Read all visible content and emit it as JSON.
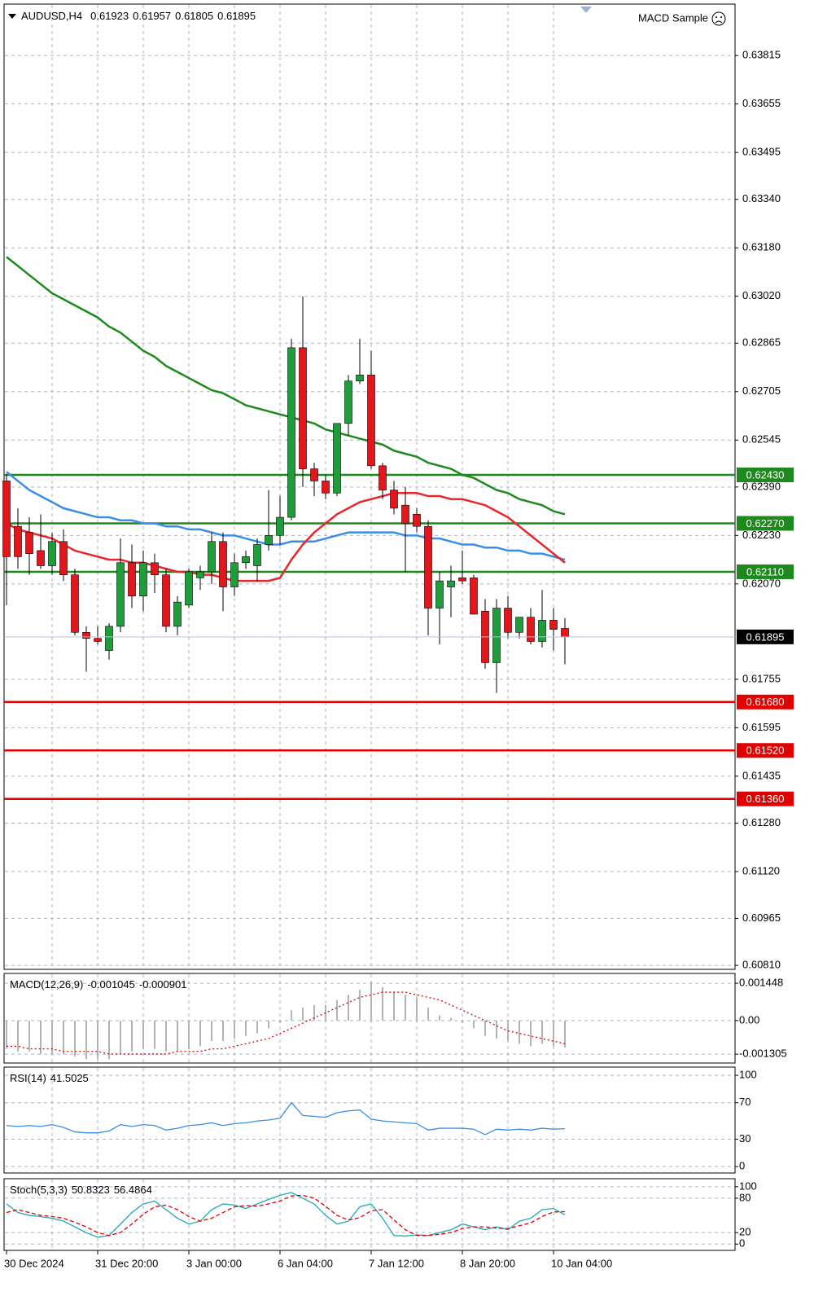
{
  "chart_data": [
    {
      "type": "candlestick",
      "title": "AUDUSD,H4",
      "expert": "MACD Sample",
      "categories": [
        "30 Dec 2024",
        null,
        null,
        null,
        null,
        null,
        null,
        null,
        "31 Dec 20:00",
        null,
        null,
        null,
        null,
        null,
        null,
        null,
        "3 Jan 00:00",
        null,
        null,
        null,
        null,
        null,
        null,
        null,
        "6 Jan 04:00",
        null,
        null,
        null,
        null,
        null,
        null,
        null,
        "7 Jan 12:00",
        null,
        null,
        null,
        null,
        null,
        null,
        null,
        "8 Jan 20:00",
        null,
        null,
        null,
        null,
        null,
        null,
        null,
        "10 Jan 04:00",
        null
      ],
      "open": [
        0.6241,
        0.6226,
        0.6224,
        0.6218,
        0.6213,
        0.6221,
        0.621,
        0.6191,
        0.6189,
        0.6185,
        0.6193,
        0.6214,
        0.6203,
        0.6214,
        0.621,
        0.6193,
        0.62,
        0.6209,
        0.6211,
        0.6221,
        0.6206,
        0.6214,
        0.6213,
        0.622,
        0.6223,
        0.6229,
        0.6285,
        0.6245,
        0.6241,
        0.6237,
        0.626,
        0.6274,
        0.6276,
        0.6246,
        0.6238,
        0.6233,
        0.623,
        0.6226,
        0.6199,
        0.6206,
        0.6209,
        0.6209,
        0.6198,
        0.6181,
        0.6199,
        0.6191,
        0.6196,
        0.6188,
        0.6195,
        0.61923
      ],
      "high": [
        0.6243,
        0.6232,
        0.6229,
        0.623,
        0.6224,
        0.6225,
        0.6212,
        0.6193,
        0.6193,
        0.6194,
        0.6222,
        0.622,
        0.6218,
        0.6217,
        0.6212,
        0.6203,
        0.6212,
        0.6213,
        0.6224,
        0.6224,
        0.6217,
        0.6218,
        0.6222,
        0.6238,
        0.6236,
        0.6288,
        0.6302,
        0.6247,
        0.6243,
        0.626,
        0.6276,
        0.6288,
        0.6284,
        0.6247,
        0.6241,
        0.6239,
        0.6232,
        0.6228,
        0.6211,
        0.6213,
        0.6218,
        0.621,
        0.6202,
        0.6202,
        0.6203,
        0.6196,
        0.6199,
        0.6205,
        0.6199,
        0.61957
      ],
      "low": [
        0.62,
        0.6212,
        0.621,
        0.6212,
        0.621,
        0.6208,
        0.619,
        0.6178,
        0.6187,
        0.6182,
        0.6191,
        0.6199,
        0.6198,
        0.6204,
        0.6191,
        0.619,
        0.6199,
        0.6205,
        0.6207,
        0.6198,
        0.6203,
        0.6212,
        0.6208,
        0.6218,
        0.622,
        0.6228,
        0.6239,
        0.6236,
        0.6235,
        0.6236,
        0.6256,
        0.6273,
        0.6245,
        0.6235,
        0.623,
        0.6211,
        0.6224,
        0.619,
        0.6187,
        0.6196,
        0.6207,
        0.6197,
        0.6179,
        0.6171,
        0.6189,
        0.6189,
        0.6187,
        0.6186,
        0.6185,
        0.61805
      ],
      "close": [
        0.6216,
        0.6216,
        0.6217,
        0.6213,
        0.6221,
        0.621,
        0.6191,
        0.6189,
        0.6188,
        0.6193,
        0.6214,
        0.6203,
        0.6214,
        0.621,
        0.6193,
        0.6201,
        0.6211,
        0.6211,
        0.6221,
        0.6206,
        0.6214,
        0.6216,
        0.622,
        0.6223,
        0.6229,
        0.6285,
        0.6245,
        0.6241,
        0.6237,
        0.626,
        0.6274,
        0.6276,
        0.6246,
        0.6238,
        0.6232,
        0.6227,
        0.6226,
        0.6199,
        0.6208,
        0.6208,
        0.6208,
        0.6197,
        0.6181,
        0.6199,
        0.6191,
        0.6196,
        0.6188,
        0.6195,
        0.6192,
        0.61895
      ],
      "up_color": "#1f9d3a",
      "down_color": "#e3161c",
      "series": [
        {
          "color": "#1e8a1e",
          "values": [
            0.6315,
            0.6312,
            0.6309,
            0.6306,
            0.6303,
            0.6301,
            0.6299,
            0.6297,
            0.6295,
            0.6292,
            0.629,
            0.6287,
            0.6284,
            0.6282,
            0.6279,
            0.6277,
            0.6275,
            0.6273,
            0.6271,
            0.627,
            0.6268,
            0.6266,
            0.6265,
            0.6264,
            0.6263,
            0.6262,
            0.6261,
            0.626,
            0.6258,
            0.6257,
            0.6256,
            0.6255,
            0.6254,
            0.6253,
            0.6251,
            0.625,
            0.6249,
            0.6247,
            0.6246,
            0.6245,
            0.6243,
            0.6242,
            0.624,
            0.6238,
            0.6237,
            0.6235,
            0.6234,
            0.6233,
            0.6231,
            0.623
          ]
        },
        {
          "color": "#3a8ee6",
          "values": [
            0.6244,
            0.6241,
            0.6238,
            0.6236,
            0.6234,
            0.6232,
            0.6231,
            0.623,
            0.6229,
            0.6229,
            0.6228,
            0.6228,
            0.6227,
            0.6227,
            0.6226,
            0.6226,
            0.6225,
            0.6225,
            0.6224,
            0.6223,
            0.6223,
            0.6222,
            0.6221,
            0.622,
            0.622,
            0.6221,
            0.6221,
            0.6221,
            0.6222,
            0.6223,
            0.6224,
            0.6224,
            0.6224,
            0.6224,
            0.6224,
            0.6223,
            0.6223,
            0.6222,
            0.6222,
            0.6221,
            0.622,
            0.622,
            0.6219,
            0.6219,
            0.6218,
            0.6218,
            0.6217,
            0.6217,
            0.6216,
            0.6215
          ]
        },
        {
          "color": "#e8272a",
          "values": [
            0.6227,
            0.6225,
            0.6224,
            0.6223,
            0.6222,
            0.622,
            0.6218,
            0.6217,
            0.6216,
            0.6215,
            0.6215,
            0.6214,
            0.6214,
            0.6213,
            0.6212,
            0.6211,
            0.6211,
            0.621,
            0.621,
            0.6209,
            0.6208,
            0.6208,
            0.6208,
            0.6208,
            0.6209,
            0.6215,
            0.622,
            0.6224,
            0.6227,
            0.623,
            0.6232,
            0.6234,
            0.6235,
            0.6236,
            0.6237,
            0.6237,
            0.6237,
            0.6236,
            0.6236,
            0.6235,
            0.6235,
            0.6234,
            0.6233,
            0.6231,
            0.6229,
            0.6226,
            0.6223,
            0.622,
            0.6217,
            0.6214
          ]
        }
      ],
      "levels": [
        {
          "value": 0.6243,
          "label": "0.62430",
          "color": "#1e8a1e"
        },
        {
          "value": 0.6227,
          "label": "0.62270",
          "color": "#1e8a1e"
        },
        {
          "value": 0.6211,
          "label": "0.62110",
          "color": "#1e8a1e"
        },
        {
          "value": 0.6168,
          "label": "0.61680",
          "color": "#e00000"
        },
        {
          "value": 0.6152,
          "label": "0.61520",
          "color": "#e00000"
        },
        {
          "value": 0.6136,
          "label": "0.61360",
          "color": "#e00000"
        }
      ],
      "ylim": [
        0.60797,
        0.63985
      ],
      "yticks": [
        0.63815,
        0.63655,
        0.63495,
        {
          "value": 0.6334,
          "label": "0.63340"
        },
        {
          "value": 0.6318,
          "label": "0.63180"
        },
        {
          "value": 0.6302,
          "label": "0.63020"
        },
        0.62865,
        0.62705,
        0.62545,
        {
          "value": 0.6239,
          "label": "0.62390"
        },
        {
          "value": 0.6223,
          "label": "0.62230"
        },
        {
          "value": 0.6207,
          "label": "0.62070"
        },
        0.61755,
        0.61595,
        0.61435,
        {
          "value": 0.6128,
          "label": "0.61280"
        },
        {
          "value": 0.6112,
          "label": "0.61120"
        },
        0.60965,
        {
          "value": 0.6081,
          "label": "0.60810"
        }
      ],
      "grid": true
    },
    {
      "type": "indicator",
      "title": "MACD(12,26,9)",
      "series": [
        {
          "style": "bar",
          "color": "#b4b4b4",
          "values": [
            -0.0011,
            -0.0012,
            -0.0012,
            -0.0013,
            -0.0013,
            -0.0013,
            -0.0014,
            -0.0015,
            -0.0015,
            -0.0015,
            -0.0013,
            -0.0012,
            -0.0011,
            -0.0011,
            -0.0012,
            -0.0012,
            -0.0011,
            -0.001,
            -0.0008,
            -0.0008,
            -0.0007,
            -0.0006,
            -0.0005,
            -0.0003,
            -0.0001,
            0.0004,
            0.0005,
            0.0006,
            0.0006,
            0.0008,
            0.001,
            0.0012,
            0.0015,
            0.0013,
            0.0011,
            0.001,
            0.0009,
            0.0005,
            0.0002,
            0.0001,
            -0.0001,
            -0.0003,
            -0.0006,
            -0.0007,
            -0.0008,
            -0.0009,
            -0.001,
            -0.0009,
            -0.001,
            -0.001045
          ]
        },
        {
          "style": "dotted",
          "color": "#e00000",
          "values": [
            -0.001,
            -0.001,
            -0.0011,
            -0.0011,
            -0.0011,
            -0.0012,
            -0.0012,
            -0.0012,
            -0.0012,
            -0.0013,
            -0.0013,
            -0.0013,
            -0.0013,
            -0.0013,
            -0.0013,
            -0.0012,
            -0.0012,
            -0.0012,
            -0.0011,
            -0.0011,
            -0.001,
            -0.0009,
            -0.0008,
            -0.0007,
            -0.0005,
            -0.0003,
            -0.0001,
            0.0001,
            0.0003,
            0.0005,
            0.0007,
            0.0009,
            0.001,
            0.0011,
            0.0011,
            0.0011,
            0.001,
            0.0009,
            0.0008,
            0.0006,
            0.0004,
            0.0002,
            0,
            -0.0002,
            -0.0004,
            -0.0005,
            -0.0006,
            -0.0007,
            -0.0008,
            -0.000901
          ]
        }
      ],
      "ylim": [
        -0.00165,
        0.00183
      ],
      "yticks": [
        0.001448,
        {
          "value": 0,
          "label": "0.00"
        },
        -0.001305
      ]
    },
    {
      "type": "indicator",
      "title": "RSI(14)",
      "series": [
        {
          "style": "line",
          "color": "#3a8ee6",
          "values": [
            45,
            44,
            45,
            44,
            46,
            43,
            38,
            37,
            37,
            39,
            46,
            44,
            46,
            45,
            40,
            42,
            45,
            46,
            48,
            45,
            47,
            48,
            50,
            51,
            53,
            70,
            56,
            55,
            54,
            59,
            61,
            62,
            52,
            50,
            49,
            48,
            47,
            40,
            42,
            42,
            42,
            41,
            35,
            41,
            40,
            41,
            40,
            42,
            41,
            41.5025
          ]
        }
      ],
      "ylim": [
        -7,
        109
      ],
      "yticks": [
        100,
        70,
        30,
        0
      ]
    },
    {
      "type": "indicator",
      "title": "Stoch(5,3,3)",
      "series": [
        {
          "style": "line",
          "color": "#20a8b0",
          "values": [
            70,
            55,
            50,
            48,
            45,
            40,
            30,
            20,
            12,
            15,
            35,
            55,
            70,
            75,
            60,
            45,
            35,
            40,
            60,
            70,
            68,
            62,
            70,
            78,
            85,
            90,
            80,
            70,
            50,
            35,
            40,
            65,
            70,
            45,
            15,
            14,
            16,
            15,
            20,
            25,
            35,
            30,
            25,
            30,
            25,
            40,
            45,
            60,
            62,
            50.8323
          ]
        },
        {
          "style": "dashed",
          "color": "#e00000",
          "values": [
            55,
            60,
            55,
            50,
            48,
            45,
            38,
            30,
            20,
            15,
            20,
            35,
            52,
            65,
            68,
            60,
            48,
            40,
            45,
            55,
            65,
            67,
            66,
            70,
            75,
            84,
            85,
            80,
            66,
            50,
            42,
            46,
            58,
            60,
            42,
            25,
            15,
            15,
            17,
            20,
            27,
            30,
            30,
            28,
            27,
            32,
            37,
            48,
            56,
            56.4864
          ]
        }
      ],
      "ylim": [
        -11,
        114
      ],
      "yticks": [
        100,
        80,
        20,
        0
      ]
    }
  ]
}
